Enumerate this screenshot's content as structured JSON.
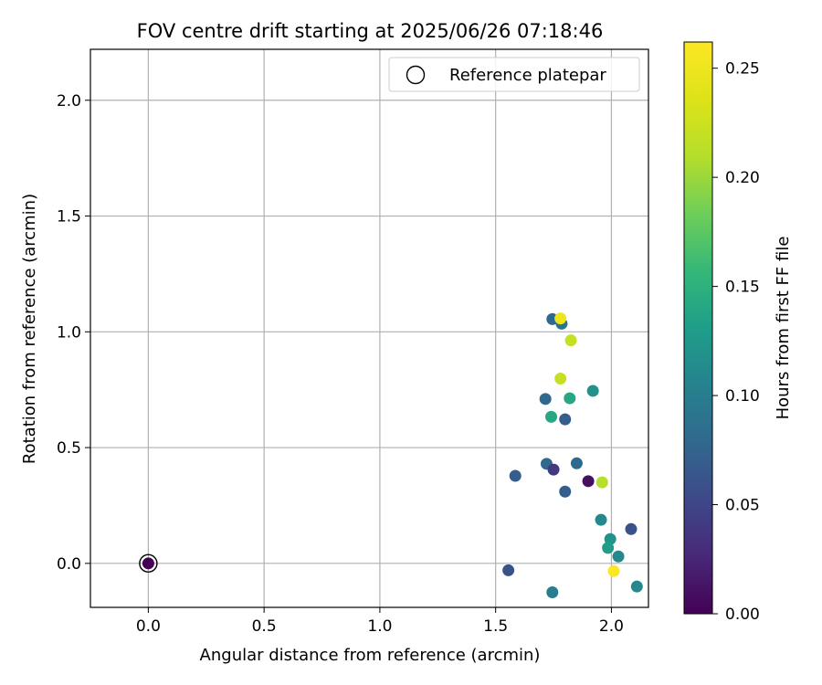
{
  "chart_data": {
    "type": "scatter",
    "title": "FOV centre drift starting at 2025/06/26 07:18:46",
    "xlabel": "Angular distance from reference (arcmin)",
    "ylabel": "Rotation from reference (arcmin)",
    "xlim": [
      -0.25,
      2.16
    ],
    "ylim": [
      -0.19,
      2.22
    ],
    "xticks": [
      0.0,
      0.5,
      1.0,
      1.5,
      2.0
    ],
    "yticks": [
      0.0,
      0.5,
      1.0,
      1.5,
      2.0
    ],
    "xtick_labels": [
      "0.0",
      "0.5",
      "1.0",
      "1.5",
      "2.0"
    ],
    "ytick_labels": [
      "0.0",
      "0.5",
      "1.0",
      "1.5",
      "2.0"
    ],
    "grid": true,
    "legend": {
      "placement": "top-right",
      "entries": [
        "Reference platepar"
      ]
    },
    "colorbar": {
      "label": "Hours from first FF file",
      "range": [
        0.0,
        0.262
      ],
      "ticks": [
        0.0,
        0.05,
        0.1,
        0.15,
        0.2,
        0.25
      ],
      "tick_labels": [
        "0.00",
        "0.05",
        "0.10",
        "0.15",
        "0.20",
        "0.25"
      ],
      "colormap": "viridis"
    },
    "reference_point": {
      "x": 0.0,
      "y": 0.0,
      "c": 0.0
    },
    "points": [
      {
        "x": 1.745,
        "y": 1.055,
        "c": 0.08
      },
      {
        "x": 1.785,
        "y": 1.035,
        "c": 0.09
      },
      {
        "x": 1.78,
        "y": 1.058,
        "c": 0.25
      },
      {
        "x": 1.825,
        "y": 0.963,
        "c": 0.22
      },
      {
        "x": 1.78,
        "y": 0.798,
        "c": 0.22
      },
      {
        "x": 1.92,
        "y": 0.745,
        "c": 0.12
      },
      {
        "x": 1.715,
        "y": 0.71,
        "c": 0.08
      },
      {
        "x": 1.82,
        "y": 0.713,
        "c": 0.14
      },
      {
        "x": 1.74,
        "y": 0.633,
        "c": 0.14
      },
      {
        "x": 1.8,
        "y": 0.622,
        "c": 0.07
      },
      {
        "x": 1.72,
        "y": 0.43,
        "c": 0.08
      },
      {
        "x": 1.75,
        "y": 0.405,
        "c": 0.04
      },
      {
        "x": 1.85,
        "y": 0.432,
        "c": 0.08
      },
      {
        "x": 1.585,
        "y": 0.378,
        "c": 0.07
      },
      {
        "x": 1.9,
        "y": 0.355,
        "c": 0.01
      },
      {
        "x": 1.96,
        "y": 0.35,
        "c": 0.21
      },
      {
        "x": 1.8,
        "y": 0.31,
        "c": 0.07
      },
      {
        "x": 1.955,
        "y": 0.188,
        "c": 0.11
      },
      {
        "x": 2.085,
        "y": 0.148,
        "c": 0.06
      },
      {
        "x": 1.995,
        "y": 0.105,
        "c": 0.12
      },
      {
        "x": 1.985,
        "y": 0.067,
        "c": 0.13
      },
      {
        "x": 2.03,
        "y": 0.03,
        "c": 0.11
      },
      {
        "x": 1.555,
        "y": -0.03,
        "c": 0.06
      },
      {
        "x": 2.01,
        "y": -0.033,
        "c": 0.26
      },
      {
        "x": 2.11,
        "y": -0.1,
        "c": 0.11
      },
      {
        "x": 1.745,
        "y": -0.125,
        "c": 0.1
      }
    ]
  }
}
